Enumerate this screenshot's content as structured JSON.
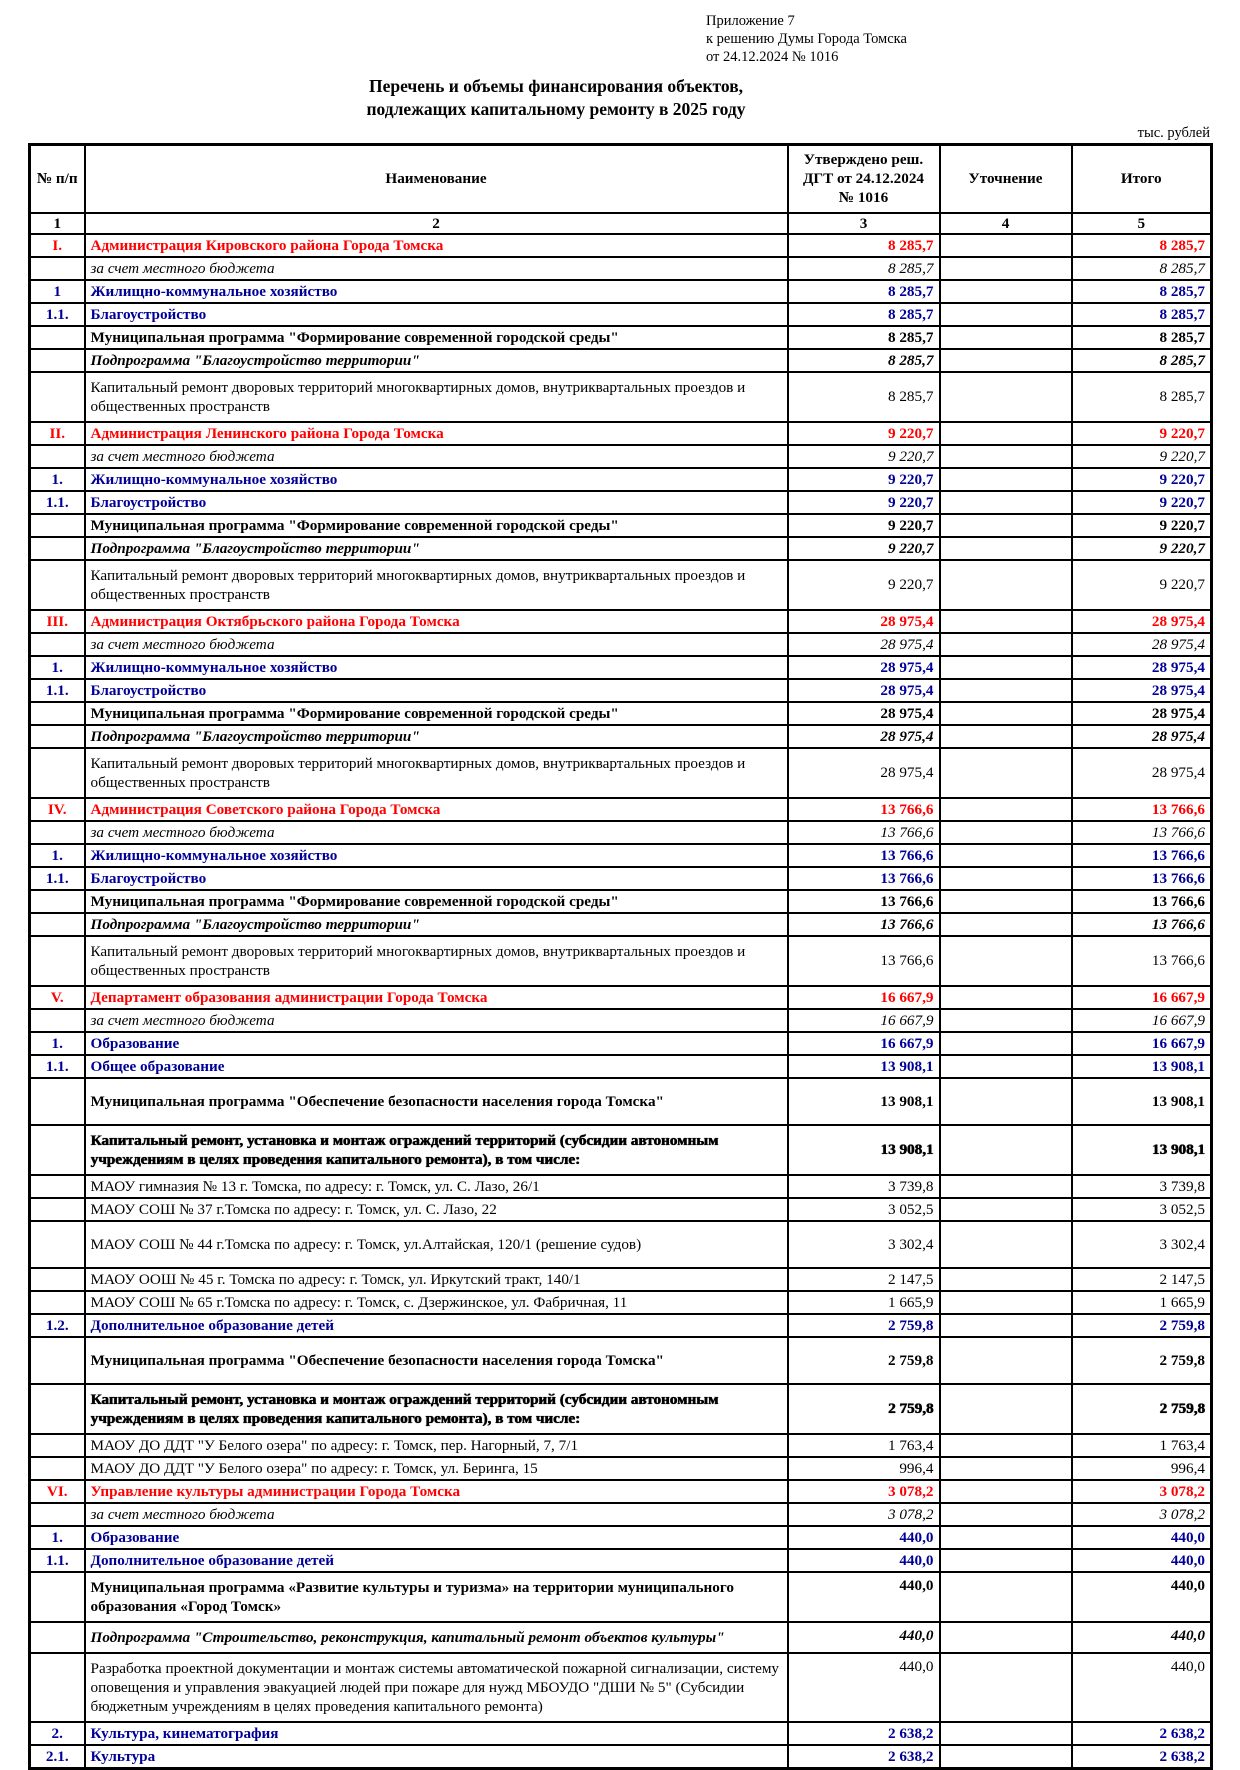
{
  "colors": {
    "section_red": "#FF0000",
    "section_blue": "#000099",
    "text": "#000000",
    "background": "#FFFFFF"
  },
  "page": {
    "annex_line1": "Приложение 7",
    "annex_line2": "к решению Думы Города Томска",
    "annex_line3": "от 24.12.2024 № 1016",
    "title_line1": "Перечень и объемы финансирования объектов,",
    "title_line2": "подлежащих капитальному ремонту в 2025 году",
    "units": "тыс. рублей"
  },
  "table": {
    "headers": {
      "num": "№ п/п",
      "name": "Наименование",
      "approved": "Утверждено реш.\nДГТ от 24.12.2024\n№ 1016",
      "clarification": "Уточнение",
      "total": "Итого"
    },
    "col_numbers": [
      "1",
      "2",
      "3",
      "4",
      "5"
    ],
    "rows": [
      {
        "num": "I.",
        "name": "Администрация Кировского района Города Томска",
        "approved": "8 285,7",
        "total": "8 285,7",
        "style": "red"
      },
      {
        "name": "за счет местного бюджета",
        "approved": "8 285,7",
        "total": "8 285,7",
        "style": "italic"
      },
      {
        "num": "1",
        "name": "Жилищно-коммунальное хозяйство",
        "approved": "8 285,7",
        "total": "8 285,7",
        "style": "blue"
      },
      {
        "num": "1.1.",
        "name": "Благоустройство",
        "approved": "8 285,7",
        "total": "8 285,7",
        "style": "blue"
      },
      {
        "name": "Муниципальная программа \"Формирование современной городской среды\"",
        "approved": "8 285,7",
        "total": "8 285,7",
        "style": "bold"
      },
      {
        "name": "Подпрограмма \"Благоустройство территории\"",
        "approved": "8 285,7",
        "total": "8 285,7",
        "style": "bolditalic"
      },
      {
        "name": "Капитальный ремонт дворовых территорий многоквартирных домов, внутриквартальных проездов и общественных пространств",
        "approved": "8 285,7",
        "total": "8 285,7",
        "style": "normal pad1"
      },
      {
        "num": "II.",
        "name": "Администрация Ленинского района Города Томска",
        "approved": "9 220,7",
        "total": "9 220,7",
        "style": "red"
      },
      {
        "name": "за счет местного бюджета",
        "approved": "9 220,7",
        "total": "9 220,7",
        "style": "italic"
      },
      {
        "num": "1.",
        "name": "Жилищно-коммунальное хозяйство",
        "approved": "9 220,7",
        "total": "9 220,7",
        "style": "blue"
      },
      {
        "num": "1.1.",
        "name": "Благоустройство",
        "approved": "9 220,7",
        "total": "9 220,7",
        "style": "blue"
      },
      {
        "name": "Муниципальная программа \"Формирование современной городской среды\"",
        "approved": "9 220,7",
        "total": "9 220,7",
        "style": "bold"
      },
      {
        "name": "Подпрограмма \"Благоустройство территории\"",
        "approved": "9 220,7",
        "total": "9 220,7",
        "style": "bolditalic"
      },
      {
        "name": "Капитальный ремонт дворовых территорий многоквартирных домов, внутриквартальных проездов и общественных пространств",
        "approved": "9 220,7",
        "total": "9 220,7",
        "style": "normal pad1"
      },
      {
        "num": "III.",
        "name": "Администрация Октябрьского района Города Томска",
        "approved": "28 975,4",
        "total": "28 975,4",
        "style": "red"
      },
      {
        "name": "за счет местного бюджета",
        "approved": "28 975,4",
        "total": "28 975,4",
        "style": "italic"
      },
      {
        "num": "1.",
        "name": "Жилищно-коммунальное хозяйство",
        "approved": "28 975,4",
        "total": "28 975,4",
        "style": "blue"
      },
      {
        "num": "1.1.",
        "name": "Благоустройство",
        "approved": "28 975,4",
        "total": "28 975,4",
        "style": "blue"
      },
      {
        "name": "Муниципальная программа \"Формирование современной городской среды\"",
        "approved": "28 975,4",
        "total": "28 975,4",
        "style": "bold"
      },
      {
        "name": "Подпрограмма \"Благоустройство территории\"",
        "approved": "28 975,4",
        "total": "28 975,4",
        "style": "bolditalic"
      },
      {
        "name": "Капитальный ремонт дворовых территорий многоквартирных домов, внутриквартальных проездов и общественных пространств",
        "approved": "28 975,4",
        "total": "28 975,4",
        "style": "normal pad1"
      },
      {
        "num": "IV.",
        "name": "Администрация Советского района Города Томска",
        "approved": "13 766,6",
        "total": "13 766,6",
        "style": "red"
      },
      {
        "name": "за счет местного бюджета",
        "approved": "13 766,6",
        "total": "13 766,6",
        "style": "italic"
      },
      {
        "num": "1.",
        "name": "Жилищно-коммунальное хозяйство",
        "approved": "13 766,6",
        "total": "13 766,6",
        "style": "blue"
      },
      {
        "num": "1.1.",
        "name": "Благоустройство",
        "approved": "13 766,6",
        "total": "13 766,6",
        "style": "blue"
      },
      {
        "name": "Муниципальная программа \"Формирование современной городской среды\"",
        "approved": "13 766,6",
        "total": "13 766,6",
        "style": "bold"
      },
      {
        "name": "Подпрограмма \"Благоустройство территории\"",
        "approved": "13 766,6",
        "total": "13 766,6",
        "style": "bolditalic"
      },
      {
        "name": "Капитальный ремонт дворовых территорий многоквартирных домов, внутриквартальных проездов и общественных пространств",
        "approved": "13 766,6",
        "total": "13 766,6",
        "style": "normal pad1"
      },
      {
        "num": "V.",
        "name": "Департамент образования администрации Города Томска",
        "approved": "16 667,9",
        "total": "16 667,9",
        "style": "red"
      },
      {
        "name": "за счет местного бюджета",
        "approved": "16 667,9",
        "total": "16 667,9",
        "style": "italic"
      },
      {
        "num": "1.",
        "name": "Образование",
        "approved": "16 667,9",
        "total": "16 667,9",
        "style": "blue"
      },
      {
        "num": "1.1.",
        "name": "Общее образование",
        "approved": "13 908,1",
        "total": "13 908,1",
        "style": "blue"
      },
      {
        "name": "Муниципальная программа \"Обеспечение безопасности населения города Томска\"",
        "approved": "13 908,1",
        "total": "13 908,1",
        "style": "bold pad2"
      },
      {
        "name": "Капитальный ремонт, установка и монтаж ограждений территорий (субсидии автономным учреждениям в целях проведения капитального ремонта), в том числе:",
        "approved": "13 908,1",
        "total": "13 908,1",
        "style": "bold smudge pad1"
      },
      {
        "name": "МАОУ гимназия № 13 г. Томска, по адресу: г. Томск, ул. С. Лазо, 26/1",
        "approved": "3 739,8",
        "total": "3 739,8",
        "style": "normal"
      },
      {
        "name": "МАОУ СОШ № 37 г.Томска по адресу: г. Томск, ул. С. Лазо, 22",
        "approved": "3 052,5",
        "total": "3 052,5",
        "style": "normal"
      },
      {
        "name": "МАОУ СОШ № 44 г.Томска по адресу: г. Томск, ул.Алтайская, 120/1 (решение судов)",
        "approved": "3 302,4",
        "total": "3 302,4",
        "style": "normal pad2"
      },
      {
        "name": "МАОУ ООШ № 45 г. Томска по адресу: г. Томск, ул. Иркутский тракт, 140/1",
        "approved": "2 147,5",
        "total": "2 147,5",
        "style": "normal"
      },
      {
        "name": "МАОУ СОШ № 65 г.Томска по адресу: г. Томск, с. Дзержинское, ул. Фабричная, 11",
        "approved": "1 665,9",
        "total": "1 665,9",
        "style": "normal"
      },
      {
        "num": "1.2.",
        "name": "Дополнительное образование детей",
        "approved": "2 759,8",
        "total": "2 759,8",
        "style": "blue"
      },
      {
        "name": "Муниципальная программа \"Обеспечение безопасности населения города Томска\"",
        "approved": "2 759,8",
        "total": "2 759,8",
        "style": "bold pad2"
      },
      {
        "name": "Капитальный ремонт, установка и монтаж ограждений территорий (субсидии автономным учреждениям в целях проведения капитального ремонта), в том числе:",
        "approved": "2 759,8",
        "total": "2 759,8",
        "style": "bold smudge pad1"
      },
      {
        "name": "МАОУ ДО ДДТ \"У Белого озера\" по адресу: г. Томск, пер. Нагорный, 7, 7/1",
        "approved": "1 763,4",
        "total": "1 763,4",
        "style": "normal"
      },
      {
        "name": "МАОУ ДО ДДТ \"У Белого озера\" по адресу: г. Томск, ул. Беринга, 15",
        "approved": "996,4",
        "total": "996,4",
        "style": "normal"
      },
      {
        "num": "VI.",
        "name": "Управление культуры администрации Города Томска",
        "approved": "3 078,2",
        "total": "3 078,2",
        "style": "red"
      },
      {
        "name": "за счет местного бюджета",
        "approved": "3 078,2",
        "total": "3 078,2",
        "style": "italic"
      },
      {
        "num": "1.",
        "name": "Образование",
        "approved": "440,0",
        "total": "440,0",
        "style": "blue"
      },
      {
        "num": "1.1.",
        "name": "Дополнительное образование детей",
        "approved": "440,0",
        "total": "440,0",
        "style": "blue"
      },
      {
        "name": "Муниципальная программа «Развитие культуры и туризма» на территории муниципального образования «Город Томск»",
        "approved": "440,0",
        "total": "440,0",
        "style": "bold vtop pad1"
      },
      {
        "name": "Подпрограмма \"Строительство, реконструкция, капитальный ремонт объектов культуры\"",
        "approved": "440,0",
        "total": "440,0",
        "style": "bolditalic vtop pad1"
      },
      {
        "name": "Разработка проектной документации и монтаж системы автоматической пожарной сигнализации, систему оповещения и управления эвакуацией людей при пожаре для нужд МБОУДО \"ДШИ № 5\" (Субсидии бюджетным учреждениям в целях проведения капитального ремонта)",
        "approved": "440,0",
        "total": "440,0",
        "style": "normal vtop pad1"
      },
      {
        "num": "2.",
        "name": "Культура, кинематография",
        "approved": "2 638,2",
        "total": "2 638,2",
        "style": "blue"
      },
      {
        "num": "2.1.",
        "name": "Культура",
        "approved": "2 638,2",
        "total": "2 638,2",
        "style": "blue"
      }
    ]
  }
}
